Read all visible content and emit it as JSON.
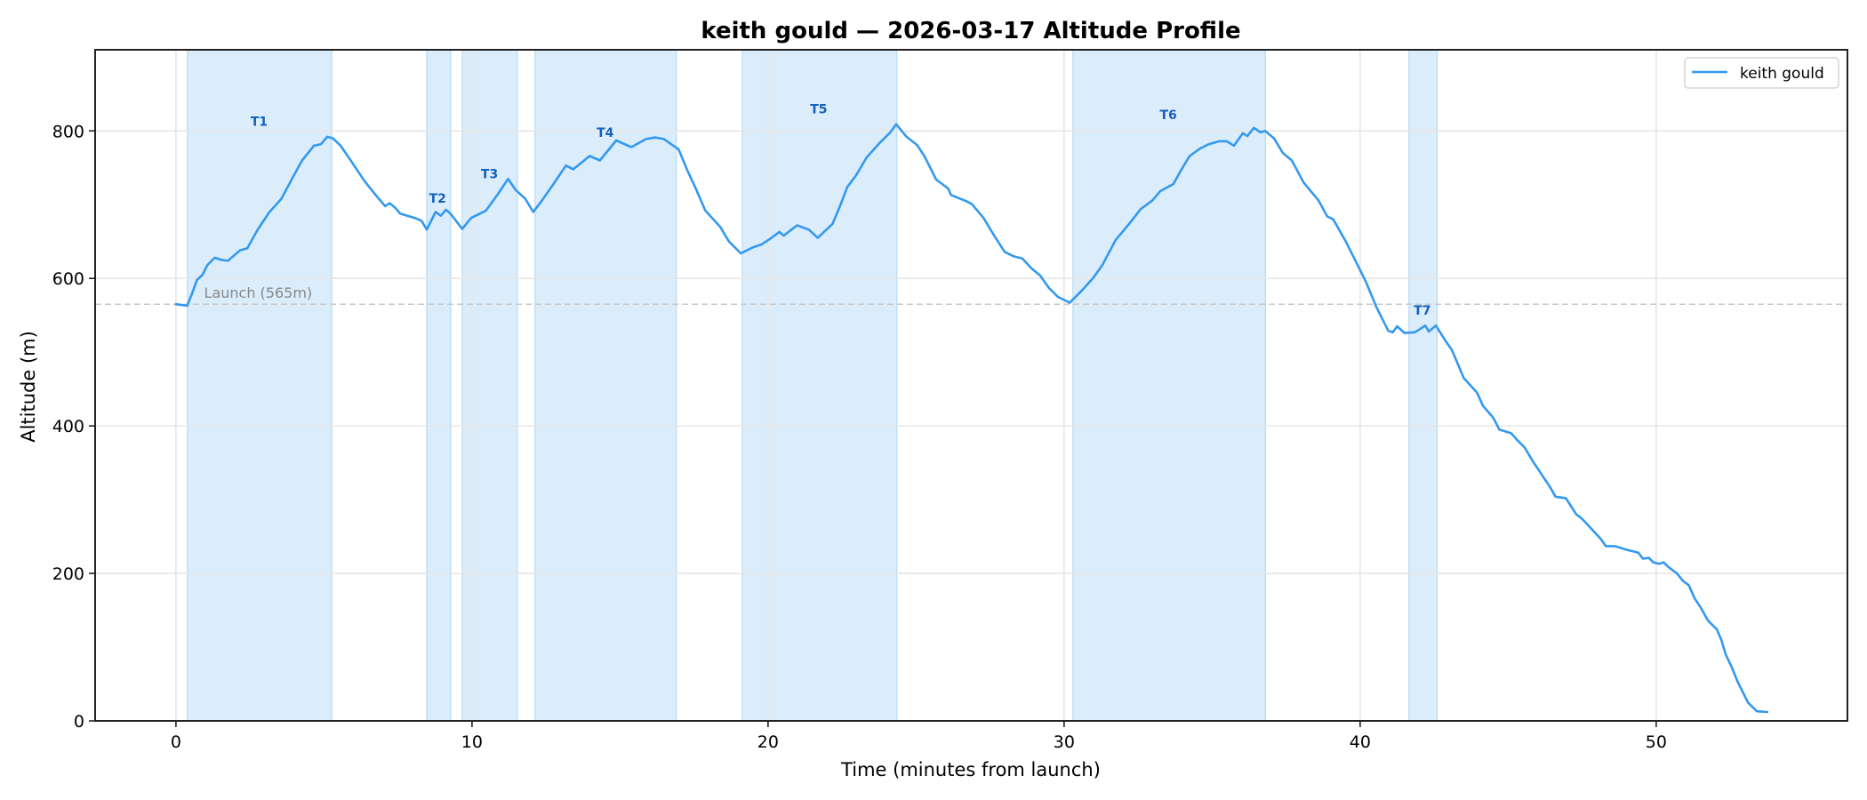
{
  "chart_data": {
    "type": "line",
    "title": "keith gould — 2026-03-17 Altitude Profile",
    "xlabel": "Time (minutes from launch)",
    "ylabel": "Altitude (m)",
    "xlim": [
      -2.73,
      56.46
    ],
    "ylim": [
      0,
      910
    ],
    "xticks": [
      0,
      10,
      20,
      30,
      40,
      50
    ],
    "yticks": [
      0,
      200,
      400,
      600,
      800
    ],
    "grid": true,
    "legend": {
      "position": "upper right",
      "entries": [
        "keith gould"
      ]
    },
    "colors": {
      "line": "#3399ee",
      "shade_fill": "#dbedfb",
      "shade_edge": "#b9dcf5",
      "segment_label": "#1560bd",
      "grid": "#e6e6e6",
      "reference_line": "#c8c8c8",
      "reference_label": "#888888",
      "axes": "#222222"
    },
    "reference_line": {
      "y": 565,
      "label": "Launch (565m)",
      "label_x": 0.95
    },
    "segments": [
      {
        "label": "T1",
        "start": 0.39,
        "end": 5.26,
        "label_x": 2.81,
        "label_y": 813
      },
      {
        "label": "T2",
        "start": 8.47,
        "end": 9.28,
        "label_x": 8.84,
        "label_y": 709
      },
      {
        "label": "T3",
        "start": 9.67,
        "end": 11.53,
        "label_x": 10.59,
        "label_y": 742
      },
      {
        "label": "T4",
        "start": 12.13,
        "end": 16.9,
        "label_x": 14.5,
        "label_y": 798
      },
      {
        "label": "T5",
        "start": 19.13,
        "end": 24.35,
        "label_x": 21.71,
        "label_y": 830
      },
      {
        "label": "T6",
        "start": 30.3,
        "end": 36.8,
        "label_x": 33.52,
        "label_y": 822
      },
      {
        "label": "T7",
        "start": 41.65,
        "end": 42.6,
        "label_x": 42.1,
        "label_y": 557
      }
    ],
    "series": [
      {
        "name": "keith gould",
        "x": [
          0.0,
          0.38,
          0.55,
          0.71,
          0.9,
          1.06,
          1.31,
          1.55,
          1.76,
          2.16,
          2.41,
          2.76,
          3.16,
          3.56,
          3.96,
          4.26,
          4.66,
          4.9,
          5.11,
          5.3,
          5.56,
          5.97,
          6.37,
          6.77,
          7.07,
          7.22,
          7.4,
          7.57,
          8.07,
          8.3,
          8.47,
          8.77,
          8.95,
          9.12,
          9.27,
          9.67,
          9.97,
          10.47,
          10.87,
          11.22,
          11.47,
          11.8,
          12.07,
          12.37,
          12.77,
          13.17,
          13.42,
          13.67,
          13.97,
          14.32,
          14.87,
          15.38,
          15.88,
          16.18,
          16.48,
          16.98,
          17.28,
          17.58,
          17.88,
          18.38,
          18.68,
          19.08,
          19.48,
          19.78,
          20.08,
          20.38,
          20.53,
          20.98,
          21.38,
          21.68,
          22.18,
          22.43,
          22.68,
          22.98,
          23.33,
          23.73,
          24.13,
          24.33,
          24.68,
          25.03,
          25.28,
          25.68,
          26.08,
          26.18,
          26.68,
          26.88,
          27.28,
          27.64,
          27.99,
          28.29,
          28.59,
          28.89,
          29.19,
          29.49,
          29.79,
          30.19,
          30.59,
          30.99,
          31.29,
          31.74,
          32.24,
          32.59,
          32.99,
          33.24,
          33.69,
          33.94,
          34.24,
          34.59,
          34.89,
          35.24,
          35.49,
          35.74,
          36.04,
          36.19,
          36.41,
          36.64,
          36.79,
          37.09,
          37.39,
          37.69,
          38.09,
          38.59,
          38.89,
          39.09,
          39.49,
          39.84,
          40.2,
          40.55,
          40.95,
          41.1,
          41.25,
          41.5,
          41.85,
          42.2,
          42.32,
          42.56,
          42.89,
          43.1,
          43.5,
          43.95,
          44.15,
          44.5,
          44.7,
          45.1,
          45.3,
          45.55,
          45.85,
          46.4,
          46.6,
          46.95,
          47.3,
          47.5,
          48.1,
          48.3,
          48.6,
          49.0,
          49.4,
          49.55,
          49.75,
          49.9,
          50.1,
          50.25,
          50.4,
          50.7,
          50.9,
          51.1,
          51.3,
          51.5,
          51.75,
          52.05,
          52.2,
          52.35,
          52.55,
          52.75,
          52.9,
          53.1,
          53.4,
          53.75
        ],
        "y": [
          565,
          563,
          580,
          598,
          605,
          618,
          628,
          625,
          624,
          638,
          641,
          666,
          690,
          708,
          738,
          760,
          780,
          782,
          792,
          790,
          780,
          756,
          732,
          712,
          698,
          702,
          696,
          688,
          682,
          678,
          666,
          690,
          685,
          693,
          688,
          667,
          682,
          692,
          714,
          735,
          720,
          708,
          690,
          706,
          729,
          753,
          748,
          756,
          766,
          760,
          787,
          778,
          789,
          791,
          789,
          775,
          746,
          720,
          692,
          670,
          650,
          634,
          642,
          646,
          654,
          663,
          658,
          672,
          666,
          655,
          674,
          698,
          724,
          740,
          764,
          782,
          798,
          809,
          792,
          781,
          766,
          734,
          722,
          713,
          705,
          701,
          682,
          658,
          636,
          630,
          627,
          614,
          604,
          587,
          575,
          567,
          583,
          601,
          618,
          652,
          676,
          694,
          706,
          718,
          728,
          746,
          766,
          776,
          782,
          786,
          786,
          780,
          797,
          793,
          804,
          798,
          800,
          790,
          770,
          760,
          730,
          706,
          684,
          680,
          652,
          624,
          595,
          561,
          529,
          527,
          535,
          526,
          527,
          536,
          528,
          536,
          515,
          503,
          465,
          445,
          427,
          411,
          395,
          390,
          381,
          371,
          351,
          318,
          304,
          302,
          280,
          274,
          248,
          237,
          237,
          232,
          228,
          220,
          221,
          215,
          213,
          215,
          209,
          200,
          190,
          184,
          166,
          154,
          136,
          124,
          110,
          90,
          73,
          53,
          41,
          25,
          13,
          12
        ]
      }
    ]
  }
}
